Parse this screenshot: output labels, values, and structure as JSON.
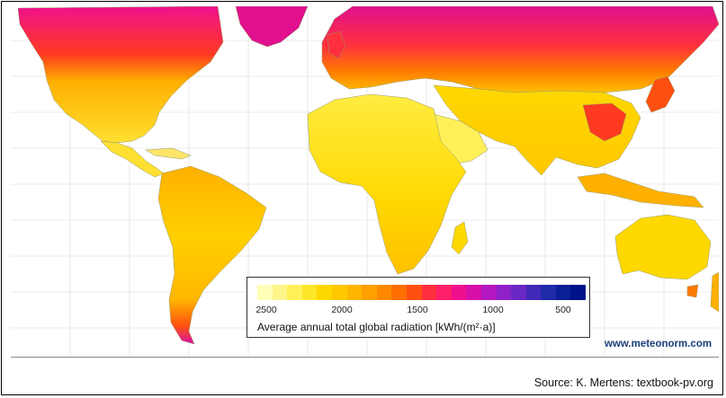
{
  "legend": {
    "title": "Average annual total global radiation [kWh/(m²·a)]",
    "ticks": [
      "2500",
      "2000",
      "1500",
      "1000",
      "500"
    ],
    "colors": [
      "#ffffb8",
      "#fff68a",
      "#fff05a",
      "#ffe62a",
      "#ffd800",
      "#ffc800",
      "#ffb600",
      "#ffa000",
      "#ff8a00",
      "#ff6e00",
      "#ff4f10",
      "#ff2f3e",
      "#ff1f6a",
      "#f0108e",
      "#d60fa8",
      "#b418c0",
      "#8e22c8",
      "#6a28c4",
      "#4228b8",
      "#1e2aa8",
      "#0a1e96",
      "#00128a"
    ]
  },
  "brand": {
    "url": "www.meteonorm.com"
  },
  "caption": {
    "source": "Source: K. Mertens: textbook-pv.org"
  },
  "map": {
    "ocean_color": "#ffffff",
    "grid_color": "#d8d8d8",
    "border_color": "#9a9a6a"
  }
}
